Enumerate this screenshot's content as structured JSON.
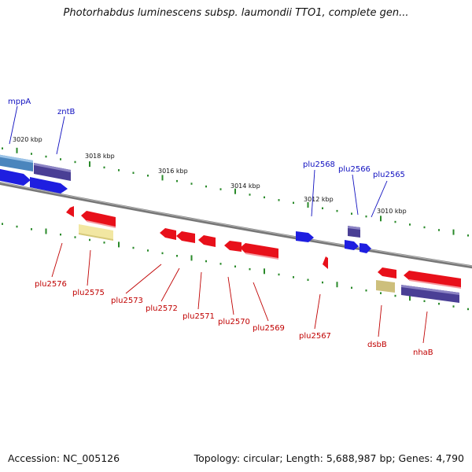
{
  "title": "Photorhabdus luminescens subsp. laumondii TTO1, complete gen...",
  "footer": {
    "accession": "Accession: NC_005126",
    "summary": "Topology: circular; Length: 5,688,987 bp; Genes: 4,790"
  },
  "colors": {
    "backbone": "#7a7a7a",
    "tick": "#2a8a2a",
    "forward_label": "#1010c0",
    "reverse_label": "#c00000",
    "gene_blue": "#1e1ee0",
    "gene_red": "#e8101a",
    "gene_purple": "#4a3f95",
    "gene_yellow": "#f2e7a2",
    "gene_tan": "#cdbf7c",
    "gene_steel": "#4a85bd"
  },
  "scale_labels": [
    "3020 kbp",
    "3018 kbp",
    "3016 kbp",
    "3014 kbp",
    "3012 kbp",
    "3010 kbp"
  ],
  "forward_genes": [
    {
      "label": "mppA",
      "color": "steel"
    },
    {
      "label": "zntB",
      "color": "purple"
    },
    {
      "label": "plu2568",
      "color": "blue"
    },
    {
      "label": "plu2566",
      "color": "purple"
    },
    {
      "label": "plu2565",
      "color": "blue"
    }
  ],
  "reverse_genes": [
    {
      "label": "plu2576",
      "color": "red"
    },
    {
      "label": "plu2575",
      "color": "yellow"
    },
    {
      "label": "plu2573",
      "color": "red"
    },
    {
      "label": "plu2572",
      "color": "red"
    },
    {
      "label": "plu2571",
      "color": "red"
    },
    {
      "label": "plu2570",
      "color": "red"
    },
    {
      "label": "plu2569",
      "color": "red"
    },
    {
      "label": "plu2567",
      "color": "red"
    },
    {
      "label": "dsbB",
      "color": "tan"
    },
    {
      "label": "nhaB",
      "color": "purple"
    }
  ]
}
